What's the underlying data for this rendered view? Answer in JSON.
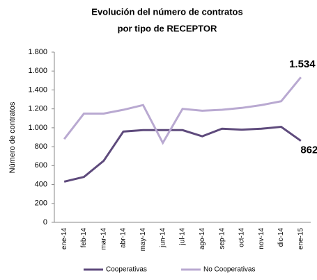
{
  "chart_data": {
    "type": "line",
    "title": [
      "Evolución del número de contratos",
      "por tipo de RECEPTOR"
    ],
    "y_label": "Número de contratos",
    "categories": [
      "ene-14",
      "feb-14",
      "mar-14",
      "abr-14",
      "may-14",
      "jun-14",
      "jul-14",
      "ago-14",
      "sep-14",
      "oct-14",
      "nov-14",
      "dic-14",
      "ene-15"
    ],
    "series": [
      {
        "name": "Cooperativas",
        "color": "#5e4a7c",
        "values": [
          430,
          480,
          650,
          960,
          975,
          975,
          975,
          910,
          990,
          980,
          990,
          1010,
          862
        ],
        "value_labels": [
          null,
          null,
          null,
          null,
          null,
          null,
          null,
          null,
          null,
          null,
          null,
          null,
          "862"
        ]
      },
      {
        "name": "No Cooperativas",
        "color": "#b9a9d1",
        "values": [
          880,
          1150,
          1150,
          1190,
          1240,
          840,
          1200,
          1180,
          1190,
          1210,
          1240,
          1280,
          1534
        ],
        "value_labels": [
          null,
          null,
          null,
          null,
          null,
          null,
          null,
          null,
          null,
          null,
          null,
          null,
          "1.534"
        ]
      }
    ],
    "ylim": [
      0,
      1800
    ],
    "yticks": [
      0,
      200,
      400,
      600,
      800,
      {
        "value": 1000,
        "label": "1.000"
      },
      {
        "value": 1200,
        "label": "1.200"
      },
      {
        "value": 1400,
        "label": "1.400"
      },
      {
        "value": 1600,
        "label": "1.600"
      },
      {
        "value": 1800,
        "label": "1.800"
      }
    ],
    "grid": false
  }
}
